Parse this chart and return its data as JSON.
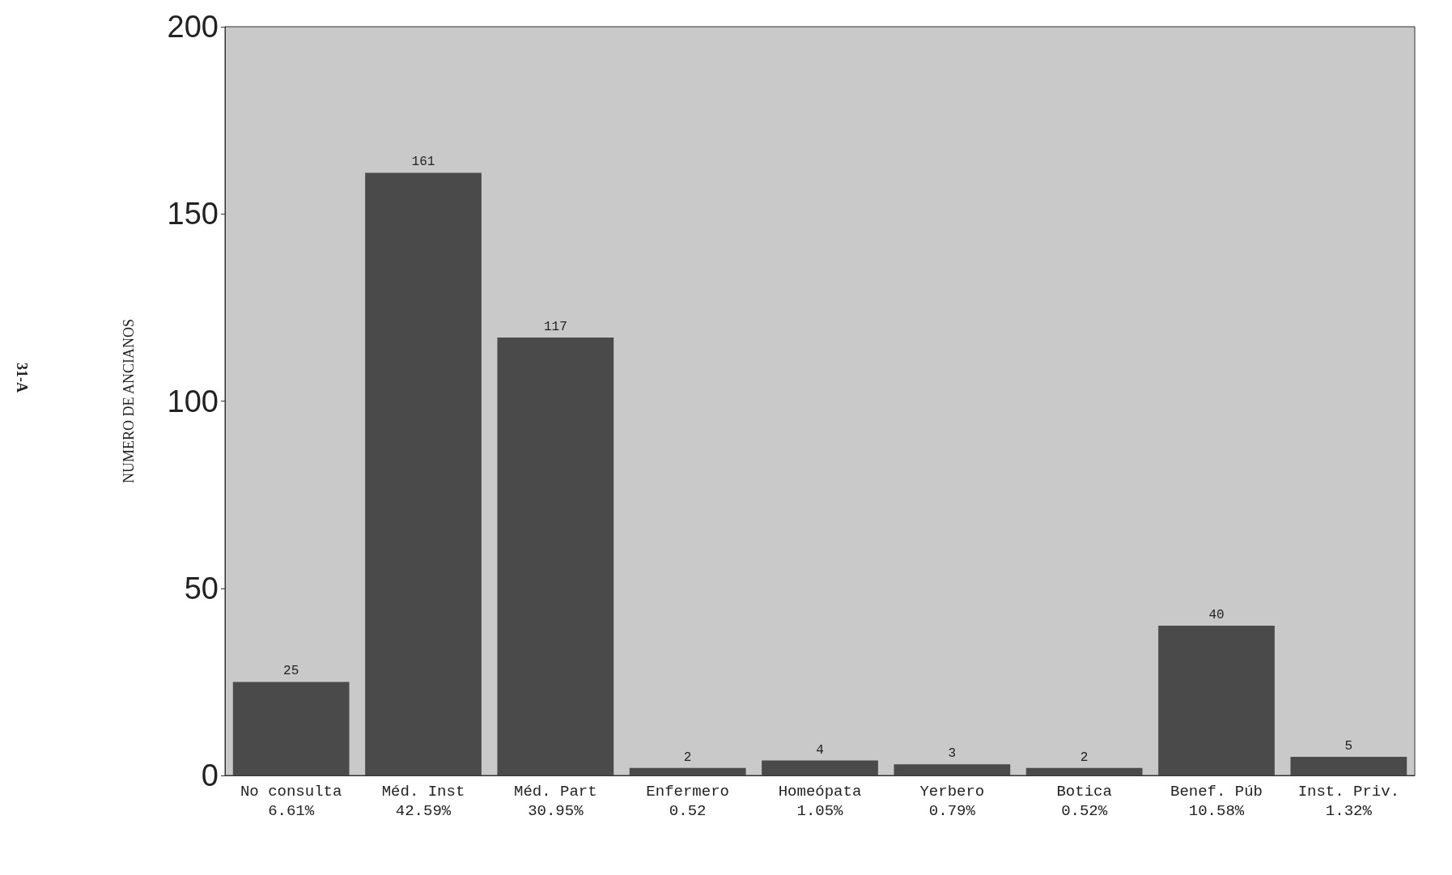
{
  "chart_data": {
    "type": "bar",
    "categories": [
      "No consulta\n6.61%",
      "Méd. Inst\n42.59%",
      "Méd. Part\n30.95%",
      "Enfermero\n0.52",
      "Homeópata\n1.05%",
      "Yerbero\n0.79%",
      "Botica\n0.52%",
      "Benef. Púb\n10.58%",
      "Inst. Priv.\n1.32%"
    ],
    "values": [
      25,
      161,
      117,
      2,
      4,
      3,
      2,
      40,
      5
    ],
    "color": "#4a4a4a",
    "ylabel": "NUMERO DE ANCIANOS",
    "ylim": [
      0,
      200
    ],
    "yticks": [
      0,
      50,
      100,
      150,
      200
    ],
    "data_labels": true,
    "grid": false,
    "annotations": [
      "31-A"
    ]
  }
}
